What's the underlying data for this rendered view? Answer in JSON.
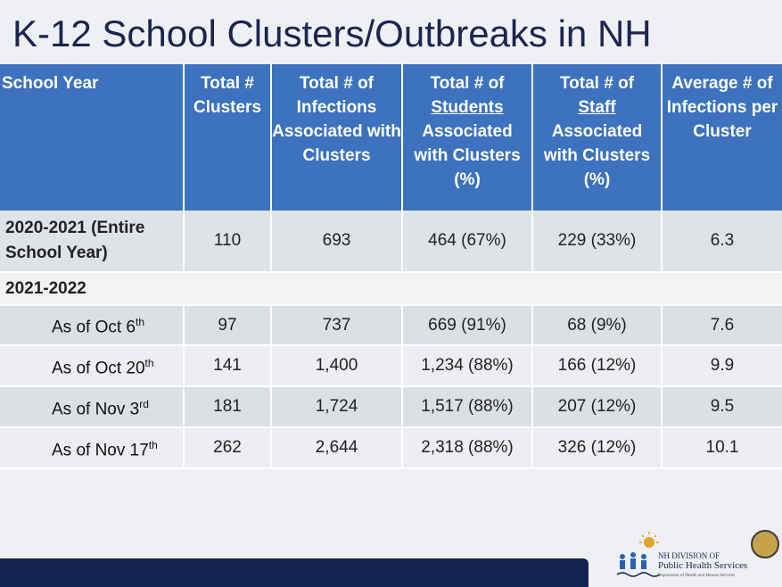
{
  "title": "K-12 School Clusters/Outbreaks in NH",
  "table": {
    "header": [
      {
        "text": "School Year"
      },
      {
        "text": "Total # Clusters"
      },
      {
        "text": "Total # of Infections Associated with Clusters"
      },
      {
        "before": "Total # of",
        "underlined": "Students",
        "after": "Associated with Clusters (%)"
      },
      {
        "before": "Total # of",
        "underlined": "Staff",
        "after": "Associated with Clusters (%)"
      },
      {
        "text": "Average # of Infections per Cluster"
      }
    ],
    "rows": [
      {
        "label": {
          "text": "2020-2021 (Entire School Year)"
        },
        "cells": [
          "110",
          "693",
          "464 (67%)",
          "229 (33%)",
          "6.3"
        ]
      },
      {
        "label": {
          "text": "2021-2022"
        }
      },
      {
        "label": {
          "text": "As of Oct 6",
          "sup": "th"
        },
        "cells": [
          "97",
          "737",
          "669 (91%)",
          "68 (9%)",
          "7.6"
        ]
      },
      {
        "label": {
          "text": "As of Oct 20",
          "sup": "th"
        },
        "cells": [
          "141",
          "1,400",
          "1,234 (88%)",
          "166 (12%)",
          "9.9"
        ]
      },
      {
        "label": {
          "text": "As of Nov 3",
          "sup": "rd"
        },
        "cells": [
          "181",
          "1,724",
          "1,517 (88%)",
          "207 (12%)",
          "9.5"
        ]
      },
      {
        "label": {
          "text": "As of Nov 17",
          "sup": "th"
        },
        "cells": [
          "262",
          "2,644",
          "2,318 (88%)",
          "326 (12%)",
          "10.1"
        ]
      }
    ]
  },
  "logo": {
    "line1": "NH DIVISION OF",
    "line2": "Public Health Services",
    "line3": "Department of Health and Human Services"
  }
}
